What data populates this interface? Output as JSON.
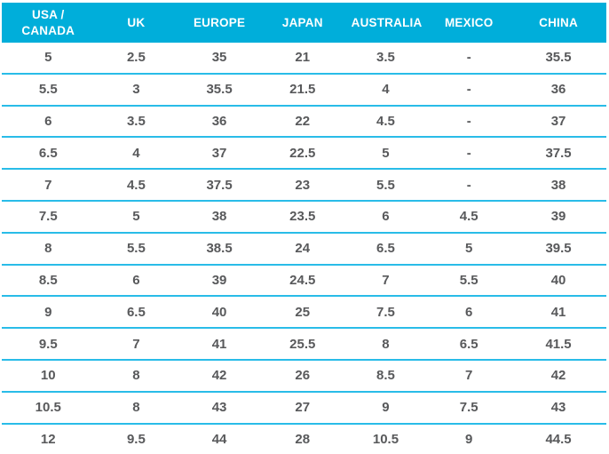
{
  "chart_data": {
    "type": "table",
    "title": "",
    "columns": [
      "USA / CANADA",
      "UK",
      "EUROPE",
      "JAPAN",
      "AUSTRALIA",
      "MEXICO",
      "CHINA"
    ],
    "rows": [
      [
        "5",
        "2.5",
        "35",
        "21",
        "3.5",
        "-",
        "35.5"
      ],
      [
        "5.5",
        "3",
        "35.5",
        "21.5",
        "4",
        "-",
        "36"
      ],
      [
        "6",
        "3.5",
        "36",
        "22",
        "4.5",
        "-",
        "37"
      ],
      [
        "6.5",
        "4",
        "37",
        "22.5",
        "5",
        "-",
        "37.5"
      ],
      [
        "7",
        "4.5",
        "37.5",
        "23",
        "5.5",
        "-",
        "38"
      ],
      [
        "7.5",
        "5",
        "38",
        "23.5",
        "6",
        "4.5",
        "39"
      ],
      [
        "8",
        "5.5",
        "38.5",
        "24",
        "6.5",
        "5",
        "39.5"
      ],
      [
        "8.5",
        "6",
        "39",
        "24.5",
        "7",
        "5.5",
        "40"
      ],
      [
        "9",
        "6.5",
        "40",
        "25",
        "7.5",
        "6",
        "41"
      ],
      [
        "9.5",
        "7",
        "41",
        "25.5",
        "8",
        "6.5",
        "41.5"
      ],
      [
        "10",
        "8",
        "42",
        "26",
        "8.5",
        "7",
        "42"
      ],
      [
        "10.5",
        "8",
        "43",
        "27",
        "9",
        "7.5",
        "43"
      ],
      [
        "12",
        "9.5",
        "44",
        "28",
        "10.5",
        "9",
        "44.5"
      ]
    ],
    "layout": {
      "header_position": "top",
      "grid": "horizontal-dividers-only",
      "legend": "none"
    }
  },
  "colors": {
    "header_bg": "#00AEDA",
    "header_text": "#FFFFFF",
    "cell_text": "#58595B",
    "divider": "#29BCE8",
    "background": "#FFFFFF"
  }
}
